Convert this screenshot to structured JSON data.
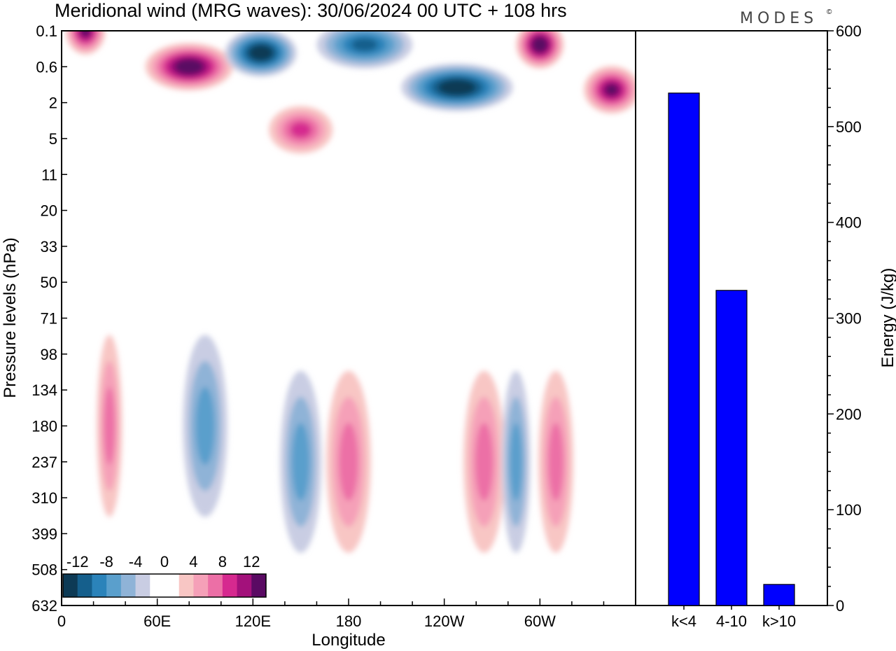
{
  "title": "Meridional wind (MRG waves):  30/06/2024  00 UTC  + 108 hrs",
  "logo": "MODES",
  "logo_mark": "©",
  "colors": {
    "neg": [
      "#0d3a55",
      "#155f8c",
      "#2b83ba",
      "#5a9fcc",
      "#8fb3d7",
      "#c9cde3"
    ],
    "zero": "#ffffff",
    "pos": [
      "#f8c6c4",
      "#f5a0b8",
      "#ec6fa6",
      "#d6298f",
      "#a3117b",
      "#5a0a63"
    ],
    "bar": "#0000ff"
  },
  "chart_data": [
    {
      "type": "heatmap",
      "xlabel": "Longitude",
      "ylabel": "Pressure levels (hPa)",
      "x_ticks": [
        "0",
        "60E",
        "120E",
        "180",
        "120W",
        "60W"
      ],
      "y_ticks": [
        "0.1",
        "0.6",
        "2",
        "5",
        "11",
        "20",
        "33",
        "50",
        "71",
        "98",
        "134",
        "180",
        "237",
        "310",
        "399",
        "508",
        "632"
      ],
      "colorbar": {
        "levels": [
          -14,
          -12,
          -10,
          -8,
          -6,
          -4,
          -2,
          2,
          4,
          6,
          8,
          10,
          12,
          14
        ],
        "labels": [
          "-12",
          "-8",
          "-4",
          "0",
          "4",
          "8",
          "12"
        ]
      },
      "features": [
        {
          "lon": 80,
          "p": 0.6,
          "value": 14,
          "width_deg": 55
        },
        {
          "lon": 15,
          "p": 0.1,
          "value": 12,
          "width_deg": 25
        },
        {
          "lon": 125,
          "p": 0.3,
          "value": -14,
          "width_deg": 45
        },
        {
          "lon": 190,
          "p": 0.2,
          "value": -10,
          "width_deg": 60
        },
        {
          "lon": 248,
          "p": 1.2,
          "value": -14,
          "width_deg": 70
        },
        {
          "lon": 300,
          "p": 0.2,
          "value": 15,
          "width_deg": 30
        },
        {
          "lon": 345,
          "p": 1.3,
          "value": 12,
          "width_deg": 35
        },
        {
          "lon": 150,
          "p": 4,
          "value": 8,
          "width_deg": 40
        },
        {
          "lon": 30,
          "p": 180,
          "value": 6,
          "width_deg": 16
        },
        {
          "lon": 90,
          "p": 180,
          "value": -7,
          "width_deg": 28
        },
        {
          "lon": 150,
          "p": 237,
          "value": -6,
          "width_deg": 26
        },
        {
          "lon": 180,
          "p": 237,
          "value": 7,
          "width_deg": 28
        },
        {
          "lon": 265,
          "p": 237,
          "value": 7,
          "width_deg": 26
        },
        {
          "lon": 285,
          "p": 237,
          "value": -6,
          "width_deg": 18
        },
        {
          "lon": 310,
          "p": 237,
          "value": 7,
          "width_deg": 22
        }
      ]
    },
    {
      "type": "bar",
      "categories": [
        "k<4",
        "4-10",
        "k>10"
      ],
      "values": [
        535,
        329,
        22
      ],
      "ylabel": "Energy (J/kg)",
      "ylim": [
        0,
        600
      ],
      "y_ticks": [
        "0",
        "100",
        "200",
        "300",
        "400",
        "500",
        "600"
      ]
    }
  ]
}
